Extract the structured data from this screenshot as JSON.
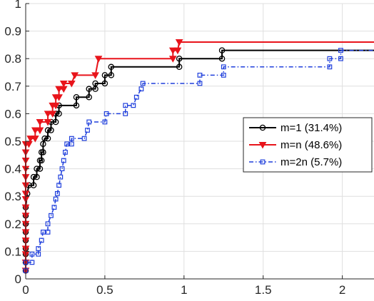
{
  "chart_data": {
    "type": "line",
    "title": "",
    "xlabel": "",
    "ylabel": "",
    "xlim": [
      0,
      2.2
    ],
    "ylim": [
      0,
      1
    ],
    "xticks": [
      0,
      0.5,
      1,
      1.5,
      2
    ],
    "xtick_labels": [
      "0",
      "0.5",
      "1",
      "1.5",
      "2"
    ],
    "yticks": [
      0,
      0.1,
      0.2,
      0.3,
      0.4,
      0.5,
      0.6,
      0.7,
      0.8,
      0.9,
      1
    ],
    "ytick_labels": [
      "0",
      "0.1",
      "0.2",
      "0.3",
      "0.4",
      "0.5",
      "0.6",
      "0.7",
      "0.8",
      "0.9",
      "1"
    ],
    "grid": true,
    "step": true,
    "legend_position": "right",
    "series": [
      {
        "name": "m=1 (31.4%)",
        "color": "#000000",
        "line_style": "solid",
        "marker": "circle",
        "points": [
          [
            0.0,
            0.03
          ],
          [
            0.0,
            0.06
          ],
          [
            0.0,
            0.09
          ],
          [
            0.0,
            0.11
          ],
          [
            0.0,
            0.14
          ],
          [
            0.0,
            0.17
          ],
          [
            0.0,
            0.2
          ],
          [
            0.0,
            0.23
          ],
          [
            0.0,
            0.26
          ],
          [
            0.01,
            0.31
          ],
          [
            0.02,
            0.34
          ],
          [
            0.05,
            0.34
          ],
          [
            0.05,
            0.37
          ],
          [
            0.07,
            0.37
          ],
          [
            0.07,
            0.4
          ],
          [
            0.09,
            0.4
          ],
          [
            0.09,
            0.43
          ],
          [
            0.1,
            0.43
          ],
          [
            0.1,
            0.46
          ],
          [
            0.11,
            0.46
          ],
          [
            0.11,
            0.49
          ],
          [
            0.12,
            0.51
          ],
          [
            0.14,
            0.51
          ],
          [
            0.14,
            0.54
          ],
          [
            0.16,
            0.54
          ],
          [
            0.16,
            0.57
          ],
          [
            0.19,
            0.57
          ],
          [
            0.19,
            0.6
          ],
          [
            0.21,
            0.6
          ],
          [
            0.21,
            0.63
          ],
          [
            0.32,
            0.63
          ],
          [
            0.32,
            0.66
          ],
          [
            0.4,
            0.66
          ],
          [
            0.4,
            0.69
          ],
          [
            0.44,
            0.69
          ],
          [
            0.44,
            0.71
          ],
          [
            0.5,
            0.71
          ],
          [
            0.5,
            0.74
          ],
          [
            0.54,
            0.74
          ],
          [
            0.54,
            0.77
          ],
          [
            0.97,
            0.77
          ],
          [
            0.97,
            0.8
          ],
          [
            1.24,
            0.8
          ],
          [
            1.24,
            0.83
          ],
          [
            2.2,
            0.83
          ]
        ]
      },
      {
        "name": "m=n (48.6%)",
        "color": "#e8141b",
        "line_style": "solid",
        "marker": "triangle-down",
        "points": [
          [
            0.0,
            0.03
          ],
          [
            0.0,
            0.06
          ],
          [
            0.0,
            0.09
          ],
          [
            0.0,
            0.11
          ],
          [
            0.0,
            0.14
          ],
          [
            0.0,
            0.17
          ],
          [
            0.0,
            0.2
          ],
          [
            0.0,
            0.23
          ],
          [
            0.0,
            0.26
          ],
          [
            0.0,
            0.29
          ],
          [
            0.0,
            0.31
          ],
          [
            0.0,
            0.34
          ],
          [
            0.0,
            0.37
          ],
          [
            0.0,
            0.4
          ],
          [
            0.0,
            0.43
          ],
          [
            0.0,
            0.46
          ],
          [
            0.0,
            0.49
          ],
          [
            0.02,
            0.49
          ],
          [
            0.03,
            0.51
          ],
          [
            0.06,
            0.51
          ],
          [
            0.06,
            0.54
          ],
          [
            0.09,
            0.54
          ],
          [
            0.09,
            0.57
          ],
          [
            0.14,
            0.57
          ],
          [
            0.14,
            0.6
          ],
          [
            0.17,
            0.6
          ],
          [
            0.17,
            0.63
          ],
          [
            0.19,
            0.63
          ],
          [
            0.19,
            0.66
          ],
          [
            0.21,
            0.66
          ],
          [
            0.21,
            0.69
          ],
          [
            0.24,
            0.69
          ],
          [
            0.24,
            0.71
          ],
          [
            0.29,
            0.71
          ],
          [
            0.31,
            0.74
          ],
          [
            0.44,
            0.74
          ],
          [
            0.46,
            0.8
          ],
          [
            0.93,
            0.8
          ],
          [
            0.93,
            0.83
          ],
          [
            0.96,
            0.83
          ],
          [
            0.97,
            0.86
          ],
          [
            2.2,
            0.86
          ]
        ]
      },
      {
        "name": "m=2n (5.7%)",
        "color": "#1f3fdc",
        "line_style": "dashdot",
        "marker": "square",
        "points": [
          [
            0.0,
            0.03
          ],
          [
            0.0,
            0.06
          ],
          [
            0.04,
            0.06
          ],
          [
            0.04,
            0.09
          ],
          [
            0.08,
            0.09
          ],
          [
            0.08,
            0.11
          ],
          [
            0.1,
            0.14
          ],
          [
            0.11,
            0.17
          ],
          [
            0.14,
            0.17
          ],
          [
            0.14,
            0.2
          ],
          [
            0.16,
            0.23
          ],
          [
            0.18,
            0.26
          ],
          [
            0.19,
            0.29
          ],
          [
            0.2,
            0.31
          ],
          [
            0.21,
            0.34
          ],
          [
            0.22,
            0.37
          ],
          [
            0.23,
            0.4
          ],
          [
            0.24,
            0.43
          ],
          [
            0.25,
            0.46
          ],
          [
            0.26,
            0.49
          ],
          [
            0.29,
            0.49
          ],
          [
            0.29,
            0.51
          ],
          [
            0.37,
            0.51
          ],
          [
            0.39,
            0.54
          ],
          [
            0.4,
            0.57
          ],
          [
            0.5,
            0.57
          ],
          [
            0.51,
            0.6
          ],
          [
            0.63,
            0.6
          ],
          [
            0.63,
            0.63
          ],
          [
            0.68,
            0.63
          ],
          [
            0.7,
            0.66
          ],
          [
            0.73,
            0.69
          ],
          [
            0.74,
            0.71
          ],
          [
            1.1,
            0.71
          ],
          [
            1.1,
            0.74
          ],
          [
            1.25,
            0.74
          ],
          [
            1.25,
            0.77
          ],
          [
            1.92,
            0.77
          ],
          [
            1.92,
            0.8
          ],
          [
            1.99,
            0.8
          ],
          [
            1.99,
            0.83
          ],
          [
            2.2,
            0.83
          ]
        ]
      }
    ]
  }
}
